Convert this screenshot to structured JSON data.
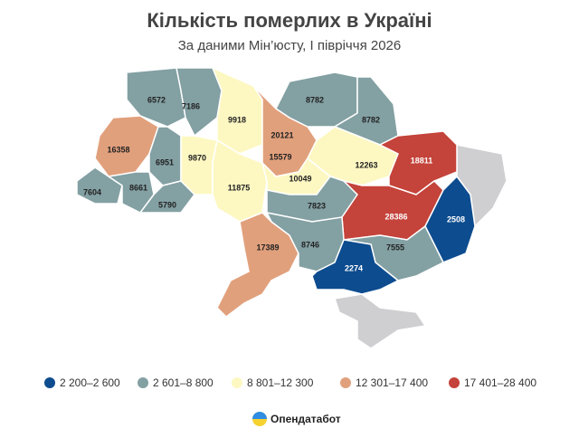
{
  "title": "Кількість померлих в Україні",
  "subtitle": "За даними Мін’юсту, I півріччя 2026",
  "bins": [
    {
      "label": "2 200–2 600",
      "min": 2200,
      "max": 2600,
      "color": "#0d4c8f"
    },
    {
      "label": "2 601–8 800",
      "min": 2601,
      "max": 8800,
      "color": "#83a0a3"
    },
    {
      "label": "8 801–12 300",
      "min": 8801,
      "max": 12300,
      "color": "#fdf8c2"
    },
    {
      "label": "12 301–17 400",
      "min": 12301,
      "max": 17400,
      "color": "#e1a07c"
    },
    {
      "label": "17 401–28 400",
      "min": 17401,
      "max": 28400,
      "color": "#c4433a"
    }
  ],
  "regions": [
    {
      "value": 6572
    },
    {
      "value": 7186
    },
    {
      "value": 9918
    },
    {
      "value": 20121
    },
    {
      "value": 15579
    },
    {
      "value": 8782
    },
    {
      "value": 8782
    },
    {
      "value": 16358
    },
    {
      "value": 6951
    },
    {
      "value": 9870
    },
    {
      "value": 7604
    },
    {
      "value": 8661
    },
    {
      "value": 5790
    },
    {
      "value": 11875
    },
    {
      "value": 10049
    },
    {
      "value": 12263
    },
    {
      "value": 18811
    },
    {
      "value": 7823
    },
    {
      "value": 28386
    },
    {
      "value": 2508
    },
    {
      "value": 17389
    },
    {
      "value": 8746
    },
    {
      "value": 7555
    },
    {
      "value": 2274
    }
  ],
  "logo": "Опендатабот"
}
